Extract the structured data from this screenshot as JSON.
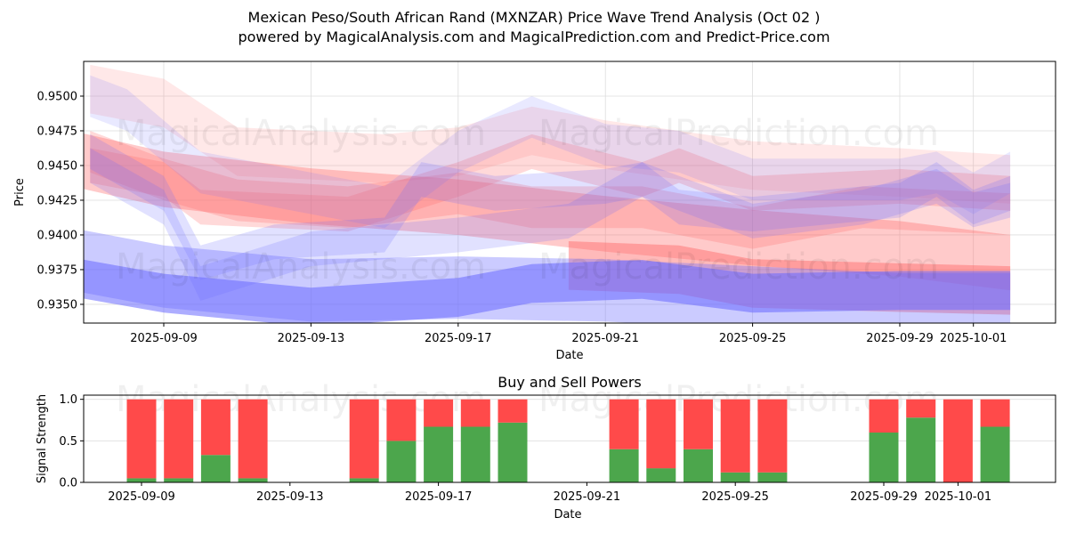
{
  "header": {
    "title_line1": "Mexican Peso/South African Rand (MXNZAR) Price Wave Trend Analysis (Oct 02 )",
    "title_line2": "powered by MagicalAnalysis.com and MagicalPrediction.com and Predict-Price.com"
  },
  "watermarks": [
    "MagicalAnalysis.com",
    "MagicalPrediction.com"
  ],
  "colors": {
    "buy": "#4ca64c",
    "sell": "#ff4a4a",
    "band_red": "#ff6666",
    "band_blue": "#6a6aff",
    "grid": "#dddddd"
  },
  "chart_data": [
    {
      "type": "area",
      "title": "",
      "xlabel": "Date",
      "ylabel": "Price",
      "x_ticks": [
        "2025-09-09",
        "2025-09-13",
        "2025-09-17",
        "2025-09-21",
        "2025-09-25",
        "2025-09-29",
        "2025-10-01"
      ],
      "y_ticks": [
        "0.9350",
        "0.9375",
        "0.9400",
        "0.9425",
        "0.9450",
        "0.9475",
        "0.9500"
      ],
      "ylim": [
        0.93365,
        0.9525
      ],
      "xlim": [
        "2025-09-06",
        "2025-10-03"
      ],
      "grid": true,
      "series": [
        {
          "name": "red-band-1",
          "color": "red",
          "opacity": 0.15,
          "width": 0.0035,
          "x": [
            "2025-09-07",
            "2025-09-09",
            "2025-09-11",
            "2025-09-15",
            "2025-09-17",
            "2025-09-19",
            "2025-09-21",
            "2025-09-25",
            "2025-09-29",
            "2025-10-02"
          ],
          "y": [
            0.9505,
            0.9495,
            0.946,
            0.9455,
            0.946,
            0.9475,
            0.9465,
            0.945,
            0.9445,
            0.944
          ]
        },
        {
          "name": "red-band-2",
          "color": "red",
          "opacity": 0.35,
          "width": 0.004,
          "x": [
            "2025-09-06",
            "2025-09-09",
            "2025-09-13",
            "2025-09-17",
            "2025-09-21",
            "2025-09-25",
            "2025-09-29",
            "2025-10-02"
          ],
          "y": [
            0.9458,
            0.944,
            0.9428,
            0.942,
            0.9408,
            0.9398,
            0.939,
            0.938
          ]
        },
        {
          "name": "red-band-3",
          "color": "red",
          "opacity": 0.25,
          "width": 0.003,
          "x": [
            "2025-09-07",
            "2025-09-09",
            "2025-09-11",
            "2025-09-14",
            "2025-09-17",
            "2025-09-19",
            "2025-09-22",
            "2025-09-25",
            "2025-09-28",
            "2025-10-02"
          ],
          "y": [
            0.946,
            0.944,
            0.9425,
            0.942,
            0.943,
            0.942,
            0.942,
            0.9405,
            0.942,
            0.9415
          ]
        },
        {
          "name": "red-band-4",
          "color": "red",
          "opacity": 0.25,
          "width": 0.0025,
          "x": [
            "2025-09-07",
            "2025-09-09",
            "2025-09-10",
            "2025-09-14",
            "2025-09-17",
            "2025-09-19",
            "2025-09-22",
            "2025-09-23",
            "2025-09-25",
            "2025-09-29",
            "2025-10-02"
          ],
          "y": [
            0.945,
            0.944,
            0.942,
            0.9415,
            0.944,
            0.946,
            0.944,
            0.945,
            0.943,
            0.9435,
            0.943
          ]
        },
        {
          "name": "red-band-5",
          "color": "red",
          "opacity": 0.45,
          "width": 0.0035,
          "x": [
            "2025-09-20",
            "2025-09-23",
            "2025-09-25",
            "2025-09-29",
            "2025-10-02"
          ],
          "y": [
            0.9378,
            0.9375,
            0.9365,
            0.9362,
            0.936
          ]
        },
        {
          "name": "blue-band-1",
          "color": "blue",
          "opacity": 0.15,
          "width": 0.003,
          "x": [
            "2025-09-07",
            "2025-09-08",
            "2025-09-10",
            "2025-09-12",
            "2025-09-15",
            "2025-09-17",
            "2025-09-19",
            "2025-09-21",
            "2025-09-23",
            "2025-09-25",
            "2025-09-29",
            "2025-09-30",
            "2025-10-01",
            "2025-10-02"
          ],
          "y": [
            0.95,
            0.949,
            0.9445,
            0.9435,
            0.942,
            0.946,
            0.9485,
            0.9465,
            0.946,
            0.944,
            0.944,
            0.9445,
            0.943,
            0.9445
          ]
        },
        {
          "name": "blue-band-2",
          "color": "blue",
          "opacity": 0.2,
          "width": 0.0025,
          "x": [
            "2025-09-07",
            "2025-09-09",
            "2025-09-10",
            "2025-09-12",
            "2025-09-15",
            "2025-09-16",
            "2025-09-18",
            "2025-09-21",
            "2025-09-22",
            "2025-09-23",
            "2025-09-25",
            "2025-09-29",
            "2025-09-30",
            "2025-10-01",
            "2025-10-02"
          ],
          "y": [
            0.946,
            0.943,
            0.938,
            0.9395,
            0.94,
            0.944,
            0.943,
            0.9435,
            0.944,
            0.942,
            0.9415,
            0.9425,
            0.944,
            0.942,
            0.943
          ]
        },
        {
          "name": "blue-band-3",
          "color": "blue",
          "opacity": 0.2,
          "width": 0.0025,
          "x": [
            "2025-09-07",
            "2025-09-09",
            "2025-09-10",
            "2025-09-13",
            "2025-09-17",
            "2025-09-20",
            "2025-09-22",
            "2025-09-24",
            "2025-09-25",
            "2025-09-28",
            "2025-09-30",
            "2025-10-01",
            "2025-10-02"
          ],
          "y": [
            0.945,
            0.942,
            0.9365,
            0.939,
            0.94,
            0.941,
            0.944,
            0.942,
            0.941,
            0.942,
            0.9435,
            0.9418,
            0.9425
          ]
        },
        {
          "name": "blue-band-4",
          "color": "blue",
          "opacity": 0.35,
          "width": 0.0045,
          "x": [
            "2025-09-06",
            "2025-09-09",
            "2025-09-13",
            "2025-09-17",
            "2025-09-21",
            "2025-09-25",
            "2025-09-29",
            "2025-10-02"
          ],
          "y": [
            0.9385,
            0.937,
            0.936,
            0.9362,
            0.936,
            0.9355,
            0.935,
            0.935
          ]
        },
        {
          "name": "blue-band-5",
          "color": "blue",
          "opacity": 0.55,
          "width": 0.0028,
          "x": [
            "2025-09-06",
            "2025-09-09",
            "2025-09-13",
            "2025-09-17",
            "2025-09-19",
            "2025-09-22",
            "2025-09-25",
            "2025-09-29",
            "2025-10-02"
          ],
          "y": [
            0.9372,
            0.9358,
            0.9348,
            0.9355,
            0.9365,
            0.9368,
            0.9358,
            0.936,
            0.936
          ]
        }
      ]
    },
    {
      "type": "bar",
      "title": "Buy and Sell Powers",
      "xlabel": "Date",
      "ylabel": "Signal Strength",
      "ylim": [
        0,
        1.05
      ],
      "y_ticks": [
        "0.0",
        "0.5",
        "1.0"
      ],
      "x_ticks": [
        "2025-09-09",
        "2025-09-13",
        "2025-09-17",
        "2025-09-21",
        "2025-09-25",
        "2025-09-29",
        "2025-10-01"
      ],
      "grid": true,
      "stacked": true,
      "categories": [
        "2025-09-09",
        "2025-09-10",
        "2025-09-11",
        "2025-09-12",
        "2025-09-15",
        "2025-09-16",
        "2025-09-17",
        "2025-09-18",
        "2025-09-19",
        "2025-09-22",
        "2025-09-23",
        "2025-09-24",
        "2025-09-25",
        "2025-09-26",
        "2025-09-29",
        "2025-09-30",
        "2025-10-01",
        "2025-10-02"
      ],
      "series": [
        {
          "name": "Buy",
          "color": "green",
          "values": [
            0.05,
            0.05,
            0.33,
            0.05,
            0.05,
            0.5,
            0.67,
            0.67,
            0.72,
            0.4,
            0.17,
            0.4,
            0.12,
            0.12,
            0.6,
            0.78,
            0.0,
            0.67
          ]
        },
        {
          "name": "Sell",
          "color": "red",
          "values": [
            0.95,
            0.95,
            0.67,
            0.95,
            0.95,
            0.5,
            0.33,
            0.33,
            0.28,
            0.6,
            0.83,
            0.6,
            0.88,
            0.88,
            0.4,
            0.22,
            1.0,
            0.33
          ]
        }
      ]
    }
  ]
}
